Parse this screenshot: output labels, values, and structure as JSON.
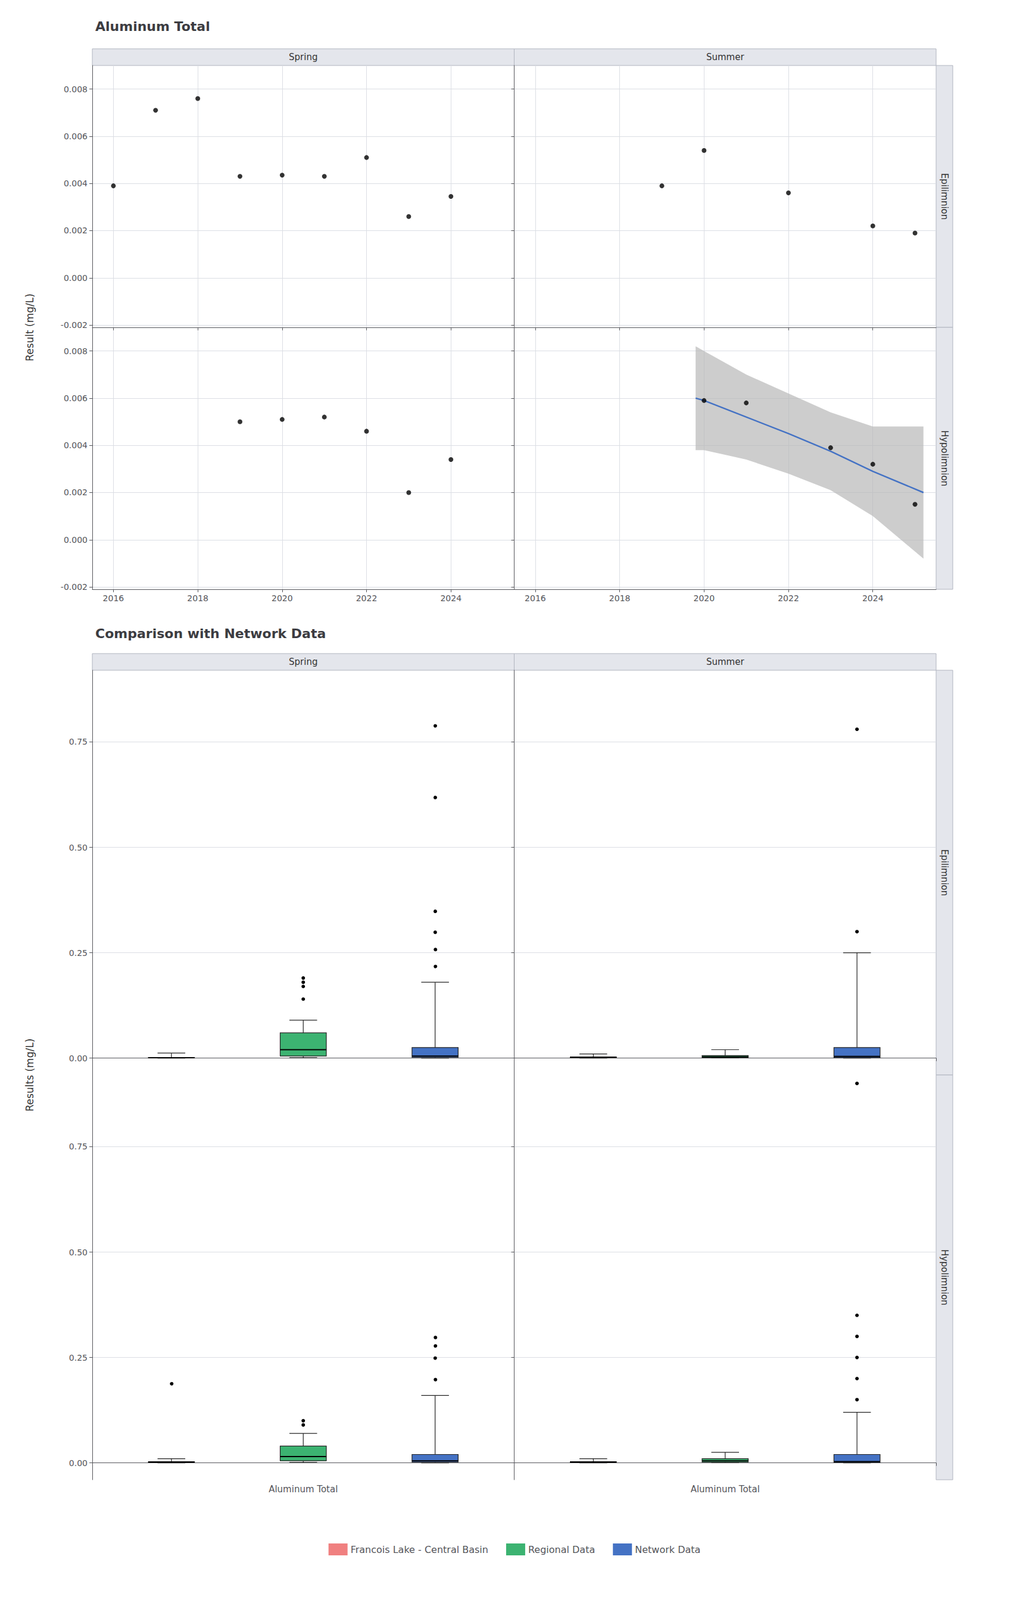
{
  "chart_data": [
    {
      "type": "scatter",
      "title": "Aluminum Total",
      "ylabel": "Result (mg/L)",
      "color": "#000000",
      "grid": true,
      "xlim": [
        2015.5,
        2025.5
      ],
      "xticks": [
        2016,
        2018,
        2020,
        2022,
        2024
      ],
      "ylim": [
        -0.0021,
        0.009
      ],
      "yticks": [
        -0.002,
        {
          "value": 0,
          "label": "0.000"
        },
        0.002,
        0.004,
        0.006,
        0.008
      ],
      "columns": [
        "Spring",
        "Summer"
      ],
      "rows": [
        "Epilimnion",
        "Hypolimnion"
      ],
      "panels": [
        {
          "column": "Spring",
          "row": "Epilimnion",
          "x": [
            2016,
            2017,
            2018,
            2019,
            2020,
            2021,
            2022,
            2023,
            2024
          ],
          "values": [
            0.0039,
            0.0071,
            0.0076,
            0.0043,
            0.00435,
            0.0043,
            0.0051,
            0.0026,
            0.00345
          ]
        },
        {
          "column": "Summer",
          "row": "Epilimnion",
          "x": [
            2019,
            2020,
            2022,
            2024,
            2025
          ],
          "values": [
            0.0039,
            0.0054,
            0.0036,
            0.0022,
            0.0019
          ]
        },
        {
          "column": "Spring",
          "row": "Hypolimnion",
          "x": [
            2019,
            2020,
            2021,
            2022,
            2023,
            2024
          ],
          "values": [
            0.005,
            0.0051,
            0.0052,
            0.0046,
            0.002,
            0.0034
          ]
        },
        {
          "column": "Summer",
          "row": "Hypolimnion",
          "x": [
            2020,
            2021,
            2023,
            2024,
            2025
          ],
          "values": [
            0.0059,
            0.0058,
            0.0039,
            0.0032,
            0.0015
          ],
          "trend": {
            "type": "line",
            "color": "#4472C4",
            "x": [
              2019.8,
              2020,
              2021,
              2022,
              2023,
              2024,
              2025.2
            ],
            "values": [
              0.006,
              0.0059,
              0.0052,
              0.0045,
              0.00375,
              0.0029,
              0.002
            ],
            "upper": [
              0.0082,
              0.008,
              0.007,
              0.0062,
              0.0054,
              0.0048,
              0.0048
            ],
            "lower": [
              0.0038,
              0.0038,
              0.0034,
              0.0028,
              0.0021,
              0.001,
              -0.0008
            ]
          }
        }
      ]
    },
    {
      "type": "boxplot",
      "title": "Comparison with Network Data",
      "ylabel": "Results (mg/L)",
      "categories": [
        "Aluminum Total"
      ],
      "grid": true,
      "legend": "bottom",
      "ylim": [
        -0.04,
        0.92
      ],
      "yticks": [
        {
          "value": 0,
          "label": "0.00"
        },
        0.25,
        {
          "value": 0.5,
          "label": "0.50"
        },
        0.75
      ],
      "columns": [
        "Spring",
        "Summer"
      ],
      "rows": [
        "Epilimnion",
        "Hypolimnion"
      ],
      "series": [
        {
          "name": "Francois Lake - Central Basin",
          "color": "#F08080"
        },
        {
          "name": "Regional Data",
          "color": "#3CB371"
        },
        {
          "name": "Network Data",
          "color": "#4472C4"
        }
      ],
      "panels": [
        {
          "column": "Spring",
          "row": "Epilimnion",
          "boxes": [
            {
              "median": 0.001,
              "q1": 0.0005,
              "q3": 0.0015,
              "whisker_low": 5e-05,
              "whisker_high": 0.012,
              "outliers": []
            },
            {
              "median": 0.02,
              "q1": 0.005,
              "q3": 0.06,
              "whisker_low": 0.001,
              "whisker_high": 0.09,
              "outliers": [
                0.14,
                0.17,
                0.18,
                0.19
              ]
            },
            {
              "median": 0.005,
              "q1": 0.002,
              "q3": 0.025,
              "whisker_low": 0.0001,
              "whisker_high": 0.18,
              "outliers": [
                0.22,
                0.26,
                0.3,
                0.35,
                0.62,
                0.79
              ]
            }
          ]
        },
        {
          "column": "Summer",
          "row": "Epilimnion",
          "boxes": [
            {
              "median": 0.002,
              "q1": 0.001,
              "q3": 0.003,
              "whisker_low": 5e-05,
              "whisker_high": 0.01,
              "outliers": []
            },
            {
              "median": 0.003,
              "q1": 0.001,
              "q3": 0.006,
              "whisker_low": 0.0005,
              "whisker_high": 0.02,
              "outliers": []
            },
            {
              "median": 0.004,
              "q1": 0.001,
              "q3": 0.025,
              "whisker_low": 0.0001,
              "whisker_high": 0.25,
              "outliers": [
                0.3,
                0.78
              ]
            }
          ]
        },
        {
          "column": "Spring",
          "row": "Hypolimnion",
          "boxes": [
            {
              "median": 0.002,
              "q1": 0.001,
              "q3": 0.003,
              "whisker_low": 5e-05,
              "whisker_high": 0.01,
              "outliers": [
                0.19
              ]
            },
            {
              "median": 0.015,
              "q1": 0.005,
              "q3": 0.04,
              "whisker_low": 0.001,
              "whisker_high": 0.07,
              "outliers": [
                0.09,
                0.1
              ]
            },
            {
              "median": 0.005,
              "q1": 0.002,
              "q3": 0.02,
              "whisker_low": 0.0001,
              "whisker_high": 0.16,
              "outliers": [
                0.2,
                0.25,
                0.28,
                0.3
              ]
            }
          ]
        },
        {
          "column": "Summer",
          "row": "Hypolimnion",
          "boxes": [
            {
              "median": 0.002,
              "q1": 0.001,
              "q3": 0.003,
              "whisker_low": 5e-05,
              "whisker_high": 0.01,
              "outliers": []
            },
            {
              "median": 0.005,
              "q1": 0.002,
              "q3": 0.01,
              "whisker_low": 0.0005,
              "whisker_high": 0.025,
              "outliers": []
            },
            {
              "median": 0.003,
              "q1": 0.001,
              "q3": 0.02,
              "whisker_low": 0.0001,
              "whisker_high": 0.12,
              "outliers": [
                0.15,
                0.2,
                0.25,
                0.3,
                0.35,
                0.9
              ]
            }
          ]
        }
      ]
    }
  ]
}
